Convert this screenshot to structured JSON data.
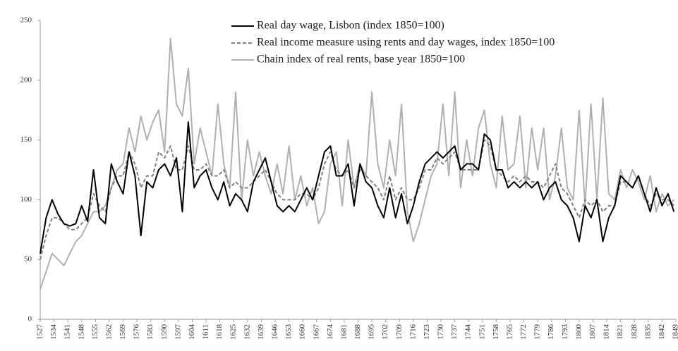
{
  "chart_data": {
    "type": "line",
    "x": [
      1527,
      1530,
      1533,
      1536,
      1539,
      1542,
      1545,
      1548,
      1551,
      1554,
      1557,
      1560,
      1563,
      1566,
      1569,
      1572,
      1575,
      1578,
      1581,
      1584,
      1587,
      1590,
      1593,
      1596,
      1599,
      1602,
      1605,
      1608,
      1611,
      1614,
      1617,
      1620,
      1623,
      1626,
      1629,
      1632,
      1635,
      1638,
      1641,
      1644,
      1647,
      1650,
      1653,
      1656,
      1659,
      1662,
      1665,
      1668,
      1671,
      1674,
      1677,
      1680,
      1683,
      1686,
      1689,
      1692,
      1695,
      1698,
      1701,
      1704,
      1707,
      1710,
      1713,
      1716,
      1719,
      1722,
      1725,
      1728,
      1731,
      1734,
      1737,
      1740,
      1743,
      1746,
      1749,
      1752,
      1755,
      1758,
      1761,
      1764,
      1767,
      1770,
      1773,
      1776,
      1779,
      1782,
      1785,
      1788,
      1791,
      1794,
      1797,
      1800,
      1803,
      1806,
      1809,
      1812,
      1815,
      1818,
      1821,
      1824,
      1827,
      1830,
      1833,
      1836,
      1839,
      1842,
      1845,
      1848
    ],
    "series": [
      {
        "name": "Real day wage, Lisbon (index 1850=100)",
        "color": "#000000",
        "dash": false,
        "values": [
          55,
          85,
          100,
          88,
          80,
          78,
          80,
          95,
          82,
          125,
          85,
          80,
          130,
          115,
          105,
          140,
          120,
          70,
          115,
          110,
          125,
          130,
          120,
          135,
          90,
          165,
          110,
          120,
          125,
          110,
          100,
          115,
          95,
          105,
          100,
          90,
          115,
          125,
          135,
          115,
          95,
          90,
          95,
          90,
          100,
          110,
          100,
          120,
          140,
          145,
          120,
          120,
          130,
          95,
          130,
          115,
          110,
          95,
          85,
          110,
          85,
          105,
          80,
          95,
          115,
          130,
          135,
          140,
          135,
          140,
          145,
          125,
          130,
          130,
          125,
          155,
          150,
          125,
          125,
          110,
          115,
          110,
          115,
          110,
          115,
          100,
          110,
          115,
          100,
          95,
          85,
          65,
          95,
          85,
          100,
          65,
          85,
          95,
          120,
          115,
          110,
          120,
          105,
          90,
          110,
          95,
          105,
          90
        ]
      },
      {
        "name": "Real income measure using rents and day wages, index 1850=100",
        "color": "#808080",
        "dash": true,
        "values": [
          50,
          70,
          85,
          85,
          80,
          75,
          75,
          80,
          85,
          105,
          95,
          90,
          110,
          120,
          120,
          140,
          130,
          110,
          120,
          120,
          140,
          135,
          145,
          125,
          125,
          145,
          125,
          125,
          130,
          120,
          120,
          125,
          110,
          115,
          110,
          110,
          115,
          120,
          125,
          115,
          105,
          100,
          100,
          100,
          105,
          105,
          100,
          110,
          130,
          140,
          125,
          120,
          125,
          110,
          125,
          120,
          115,
          110,
          100,
          120,
          100,
          110,
          100,
          100,
          110,
          125,
          125,
          135,
          130,
          135,
          140,
          125,
          125,
          125,
          125,
          150,
          145,
          125,
          120,
          115,
          120,
          115,
          120,
          115,
          115,
          110,
          120,
          130,
          110,
          105,
          95,
          85,
          100,
          95,
          100,
          90,
          95,
          95,
          115,
          115,
          110,
          120,
          105,
          95,
          105,
          100,
          100,
          95
        ]
      },
      {
        "name": "Chain index of real rents, base year 1850=100",
        "color": "#b0b0b0",
        "dash": false,
        "values": [
          25,
          40,
          55,
          50,
          45,
          55,
          65,
          70,
          80,
          90,
          90,
          95,
          110,
          125,
          130,
          160,
          140,
          170,
          150,
          165,
          175,
          140,
          235,
          180,
          170,
          210,
          130,
          160,
          140,
          120,
          180,
          130,
          110,
          190,
          100,
          150,
          120,
          140,
          120,
          105,
          130,
          105,
          145,
          100,
          120,
          95,
          110,
          80,
          90,
          130,
          140,
          95,
          150,
          110,
          130,
          120,
          190,
          130,
          110,
          150,
          120,
          180,
          90,
          65,
          80,
          100,
          120,
          130,
          180,
          120,
          190,
          110,
          150,
          120,
          160,
          175,
          130,
          110,
          170,
          125,
          130,
          170,
          110,
          160,
          125,
          160,
          100,
          120,
          160,
          110,
          100,
          175,
          95,
          180,
          100,
          185,
          105,
          100,
          125,
          110,
          125,
          115,
          100,
          120,
          90,
          105,
          95,
          100
        ]
      }
    ],
    "xlim": [
      1527,
      1849
    ],
    "xticks": [
      1527,
      1534,
      1541,
      1548,
      1555,
      1562,
      1569,
      1576,
      1583,
      1590,
      1597,
      1604,
      1611,
      1618,
      1625,
      1632,
      1639,
      1646,
      1653,
      1660,
      1667,
      1674,
      1681,
      1688,
      1695,
      1702,
      1709,
      1716,
      1723,
      1730,
      1737,
      1744,
      1751,
      1758,
      1765,
      1772,
      1779,
      1786,
      1793,
      1800,
      1807,
      1814,
      1821,
      1828,
      1835,
      1842,
      1849
    ],
    "ylim": [
      0,
      250
    ],
    "yticks": [
      0,
      50,
      100,
      150,
      200,
      250
    ]
  }
}
